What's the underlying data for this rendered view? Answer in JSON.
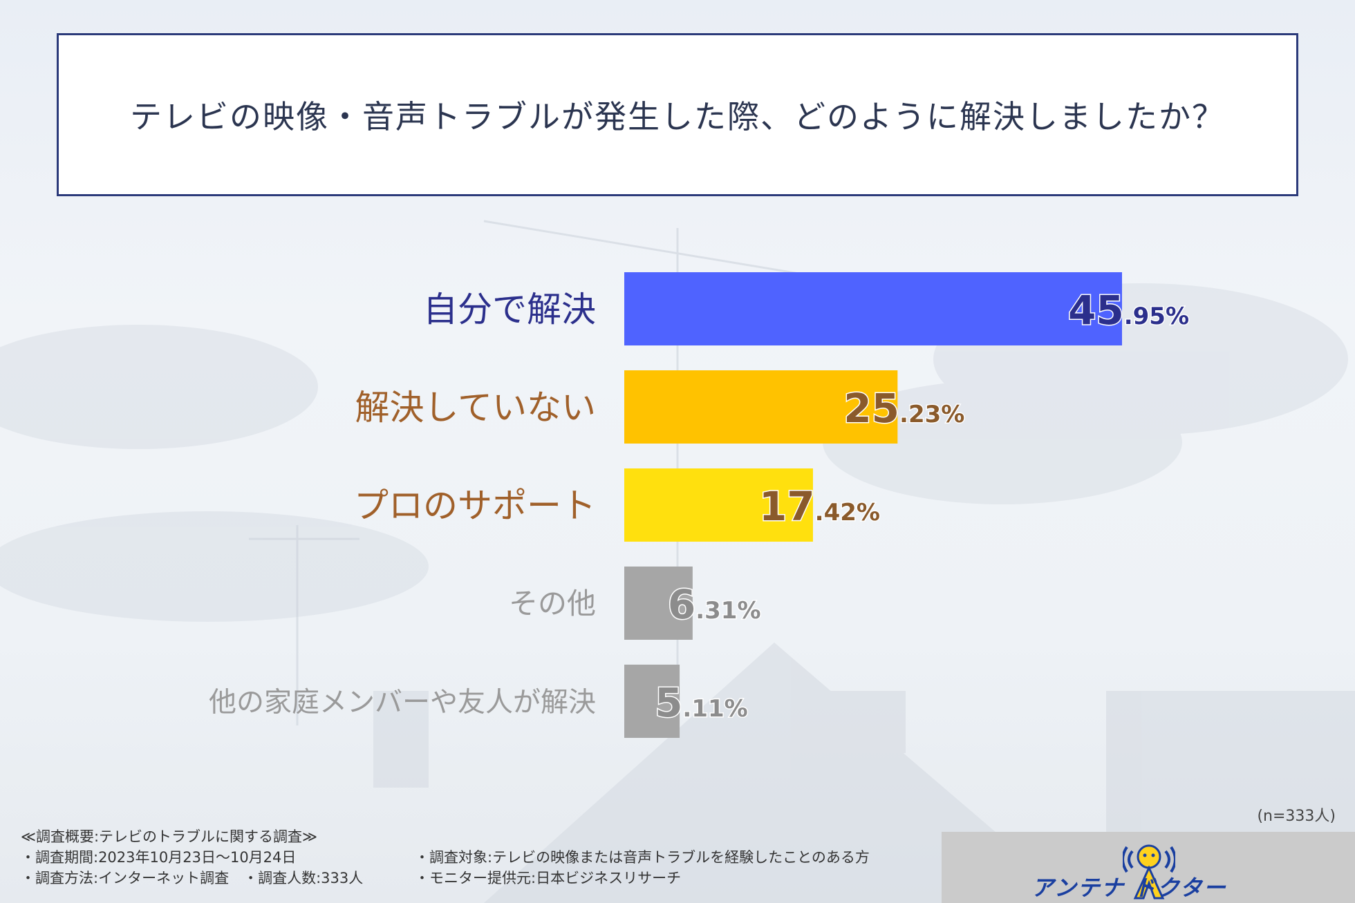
{
  "question": "テレビの映像・音声トラブルが発生した際、どのように解決しましたか？",
  "chart_data": {
    "type": "bar",
    "orientation": "horizontal",
    "title": "テレビの映像・音声トラブルが発生した際、どのように解決しましたか？",
    "categories": [
      "自分で解決",
      "解決していない",
      "プロのサポート",
      "その他",
      "他の家庭メンバーや友人が解決"
    ],
    "values": [
      45.95,
      25.23,
      17.42,
      6.31,
      5.11
    ],
    "value_labels": [
      {
        "int": "45",
        "dec": ".95%"
      },
      {
        "int": "25",
        "dec": ".23%"
      },
      {
        "int": "17",
        "dec": ".42%"
      },
      {
        "int": "6",
        "dec": ".31%"
      },
      {
        "int": "5",
        "dec": ".11%"
      }
    ],
    "bar_colors": [
      "#4f63ff",
      "#ffc200",
      "#ffe00e",
      "#a6a6a6",
      "#a6a6a6"
    ],
    "label_colors": [
      "#2b2f8c",
      "#a0602a",
      "#a0602a",
      "#9a9a9a",
      "#9a9a9a"
    ],
    "value_colors": [
      "#2b2f8c",
      "#8a5a2b",
      "#8a5a2b",
      "#8c8c8c",
      "#8c8c8c"
    ],
    "xlim": [
      0,
      100
    ],
    "grid": false,
    "legend": "none"
  },
  "sample_size": "(n=333人)",
  "footnotes": {
    "heading": "≪調査概要:テレビのトラブルに関する調査≫",
    "left": [
      "・調査期間:2023年10月23日〜10月24日",
      "・調査方法:インターネット調査　・調査人数:333人"
    ],
    "right": [
      "・調査対象:テレビの映像または音声トラブルを経験したことのある方",
      "・モニター提供元:日本ビジネスリサーチ"
    ]
  },
  "logo": {
    "text": "アンテナ ドクター",
    "colors": {
      "text": "#1a3fa0",
      "accent": "#ffd21e"
    },
    "icon": "antenna-mascot-icon"
  }
}
